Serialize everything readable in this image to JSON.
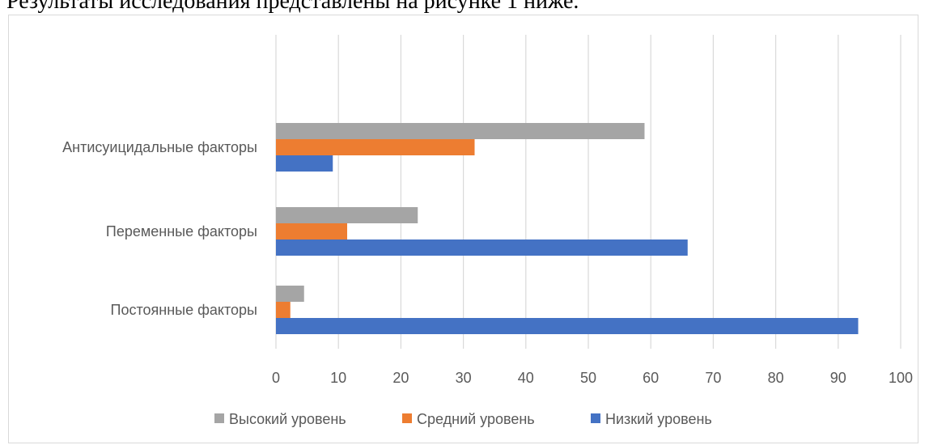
{
  "page": {
    "intro_text": "Результаты исследования представлены на рисунке 1 ниже."
  },
  "chart_data": {
    "type": "bar",
    "orientation": "horizontal",
    "categories": [
      "Антисуицидальные факторы",
      "Переменные факторы",
      "Постоянные факторы"
    ],
    "series": [
      {
        "name": "Высокий уровень",
        "color": "#a5a5a5",
        "values": [
          59,
          22.7,
          4.5
        ]
      },
      {
        "name": "Средний уровень",
        "color": "#ed7d31",
        "values": [
          31.8,
          11.4,
          2.3
        ]
      },
      {
        "name": "Низкий уровень",
        "color": "#4472c4",
        "values": [
          9.1,
          65.9,
          93.2
        ]
      }
    ],
    "xlim": [
      0,
      100
    ],
    "xticks": [
      0,
      10,
      20,
      30,
      40,
      50,
      60,
      70,
      80,
      90,
      100
    ],
    "grid": true,
    "legend_position": "bottom"
  }
}
